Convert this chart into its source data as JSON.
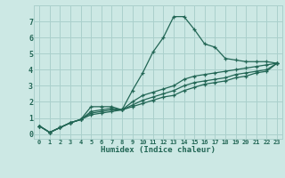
{
  "xlabel": "Humidex (Indice chaleur)",
  "ylabel": "",
  "xlim": [
    -0.5,
    23.5
  ],
  "ylim": [
    -0.3,
    8.0
  ],
  "yticks": [
    0,
    1,
    2,
    3,
    4,
    5,
    6,
    7
  ],
  "xticks": [
    0,
    1,
    2,
    3,
    4,
    5,
    6,
    7,
    8,
    9,
    10,
    11,
    12,
    13,
    14,
    15,
    16,
    17,
    18,
    19,
    20,
    21,
    22,
    23
  ],
  "background_color": "#cce8e4",
  "grid_color": "#aad0cc",
  "line_color": "#226655",
  "line_width": 0.9,
  "marker": "+",
  "marker_size": 3.5,
  "marker_lw": 0.9,
  "lines": [
    {
      "x": [
        0,
        1,
        2,
        3,
        4,
        5,
        6,
        7,
        8,
        9,
        10,
        11,
        12,
        13,
        14,
        15,
        16,
        17,
        18,
        19,
        20,
        21,
        22,
        23
      ],
      "y": [
        0.5,
        0.1,
        0.4,
        0.7,
        0.9,
        1.7,
        1.7,
        1.7,
        1.5,
        2.7,
        3.8,
        5.1,
        6.0,
        7.3,
        7.3,
        6.5,
        5.6,
        5.4,
        4.7,
        4.6,
        4.5,
        4.5,
        4.5,
        4.4
      ]
    },
    {
      "x": [
        0,
        1,
        2,
        3,
        4,
        5,
        6,
        7,
        8,
        9,
        10,
        11,
        12,
        13,
        14,
        15,
        16,
        17,
        18,
        19,
        20,
        21,
        22,
        23
      ],
      "y": [
        0.5,
        0.1,
        0.4,
        0.7,
        0.9,
        1.4,
        1.5,
        1.6,
        1.5,
        2.0,
        2.4,
        2.6,
        2.8,
        3.0,
        3.4,
        3.6,
        3.7,
        3.8,
        3.9,
        4.0,
        4.1,
        4.2,
        4.3,
        4.4
      ]
    },
    {
      "x": [
        0,
        1,
        2,
        3,
        4,
        5,
        6,
        7,
        8,
        9,
        10,
        11,
        12,
        13,
        14,
        15,
        16,
        17,
        18,
        19,
        20,
        21,
        22,
        23
      ],
      "y": [
        0.5,
        0.1,
        0.4,
        0.7,
        0.9,
        1.3,
        1.4,
        1.5,
        1.5,
        1.8,
        2.1,
        2.3,
        2.5,
        2.7,
        3.0,
        3.2,
        3.3,
        3.4,
        3.5,
        3.7,
        3.8,
        3.9,
        4.0,
        4.4
      ]
    },
    {
      "x": [
        0,
        1,
        2,
        3,
        4,
        5,
        6,
        7,
        8,
        9,
        10,
        11,
        12,
        13,
        14,
        15,
        16,
        17,
        18,
        19,
        20,
        21,
        22,
        23
      ],
      "y": [
        0.5,
        0.1,
        0.4,
        0.7,
        0.9,
        1.2,
        1.3,
        1.4,
        1.5,
        1.7,
        1.9,
        2.1,
        2.3,
        2.4,
        2.7,
        2.9,
        3.1,
        3.2,
        3.3,
        3.5,
        3.6,
        3.8,
        3.9,
        4.4
      ]
    }
  ]
}
